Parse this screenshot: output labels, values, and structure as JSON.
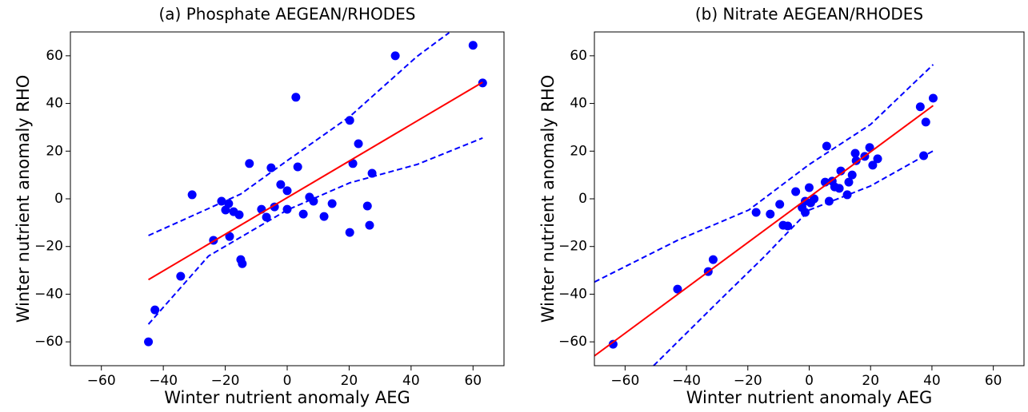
{
  "chart_data": [
    {
      "type": "scatter",
      "title": "(a) Phosphate AEGEAN/RHODES",
      "xlabel": "Winter nutrient anomaly AEG",
      "ylabel": "Winter nutrient anomaly RHO",
      "xlim": [
        -70,
        70
      ],
      "ylim": [
        -70,
        70
      ],
      "xticks": [
        {
          "value": -60,
          "label": "−60"
        },
        {
          "value": -40,
          "label": "−40"
        },
        {
          "value": -20,
          "label": "−20"
        },
        0,
        20,
        40,
        60
      ],
      "yticks": [
        {
          "value": -60,
          "label": "−60"
        },
        {
          "value": -40,
          "label": "−40"
        },
        {
          "value": -20,
          "label": "−20"
        },
        0,
        20,
        40,
        60
      ],
      "series": [
        {
          "marker": "circle",
          "color": "#0000ff",
          "x": [
            -44.8,
            -42.7,
            -34.4,
            -30.7,
            -23.8,
            -21.2,
            -19.9,
            -18.9,
            -18.6,
            -17.3,
            -15.5,
            -15,
            -14.5,
            -12.2,
            -8.3,
            -6.7,
            -5.2,
            -4.1,
            -2.1,
            0,
            0,
            2.8,
            3.4,
            5.2,
            7.2,
            8.5,
            11.9,
            14.5,
            20.2,
            20.2,
            21.2,
            23,
            25.9,
            26.6,
            27.4,
            34.9,
            60,
            63.1
          ],
          "values": [
            -60,
            -46.6,
            -32.5,
            1.7,
            -17.4,
            -1,
            -4.7,
            -2,
            -15.8,
            -5.4,
            -6.7,
            -25.5,
            -27.2,
            14.8,
            -4.4,
            -7.7,
            13,
            -3.4,
            6,
            3.4,
            -4.4,
            42.6,
            13.4,
            -6.4,
            0.7,
            -1,
            -7.4,
            -2,
            32.9,
            -14.1,
            14.8,
            23.1,
            -3,
            -11.1,
            10.7,
            60,
            64.4,
            48.6
          ]
        },
        {
          "line": "solid",
          "color": "#ff0000",
          "x": [
            -44.8,
            63.1
          ],
          "values": [
            -33.9,
            48.9
          ]
        },
        {
          "line": "dashed",
          "color": "#0000ff",
          "x": [
            -44.8,
            -15,
            0,
            20.2,
            41.9,
            52.3
          ],
          "values": [
            -15.4,
            2,
            16,
            34.5,
            59.7,
            69.7
          ]
        },
        {
          "line": "dashed",
          "color": "#0000ff",
          "x": [
            -44.8,
            -25.4,
            0,
            20.2,
            41.9,
            63.1
          ],
          "values": [
            -52.6,
            -24,
            -4.7,
            6.7,
            14.4,
            25.5
          ]
        }
      ]
    },
    {
      "type": "scatter",
      "title": "(b) Nitrate AEGEAN/RHODES",
      "xlabel": "Winter nutrient anomaly AEG",
      "ylabel": "Winter nutrient anomaly RHO",
      "xlim": [
        -70,
        70
      ],
      "ylim": [
        -70,
        70
      ],
      "xticks": [
        {
          "value": -60,
          "label": "−60"
        },
        {
          "value": -40,
          "label": "−40"
        },
        {
          "value": -20,
          "label": "−20"
        },
        0,
        20,
        40,
        60
      ],
      "yticks": [
        {
          "value": -60,
          "label": "−60"
        },
        {
          "value": -40,
          "label": "−40"
        },
        {
          "value": -20,
          "label": "−20"
        },
        0,
        20,
        40,
        60
      ],
      "series": [
        {
          "marker": "circle",
          "color": "#0000ff",
          "x": [
            -63.9,
            -42.9,
            -32.9,
            -31.3,
            -17.3,
            -12.7,
            -9.6,
            -8.5,
            -7,
            -4.4,
            -2.3,
            -1.3,
            -1.3,
            0,
            0.5,
            1.6,
            5.7,
            5.2,
            6.5,
            7.5,
            8.3,
            9.8,
            10.3,
            12.4,
            12.9,
            14,
            15,
            15.3,
            18.1,
            19.7,
            20.7,
            22.3,
            36.2,
            38,
            37.3,
            40.4
          ],
          "values": [
            -61,
            -37.9,
            -30.5,
            -25.5,
            -5.7,
            -6.4,
            -2.3,
            -11.1,
            -11.4,
            3,
            -3.7,
            -5.7,
            -1,
            4.7,
            -1.7,
            0,
            22.1,
            7,
            -1,
            7.4,
            5,
            4.4,
            11.7,
            1.7,
            7,
            10,
            19.1,
            16,
            17.8,
            21.5,
            14.1,
            16.8,
            38.6,
            32.2,
            18.1,
            42.2
          ]
        },
        {
          "line": "solid",
          "color": "#ff0000",
          "x": [
            -70,
            40.4
          ],
          "values": [
            -65.9,
            39.1
          ]
        },
        {
          "line": "dashed",
          "color": "#0000ff",
          "x": [
            -70,
            -42.9,
            -19.7,
            0,
            20,
            40.4
          ],
          "values": [
            -34.9,
            -17.4,
            -4.7,
            14.4,
            31.2,
            56.3
          ]
        },
        {
          "line": "dashed",
          "color": "#0000ff",
          "x": [
            -50.7,
            -30,
            -14.5,
            0,
            20,
            40.4
          ],
          "values": [
            -70,
            -43.6,
            -24.1,
            -4.7,
            5.4,
            20.1
          ]
        }
      ]
    }
  ]
}
